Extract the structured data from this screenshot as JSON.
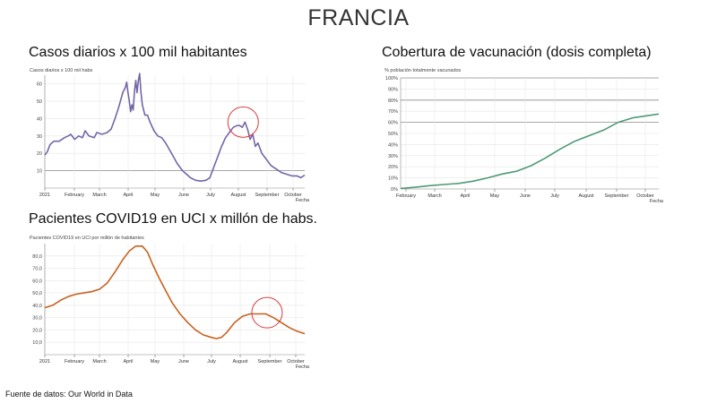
{
  "page": {
    "title": "FRANCIA",
    "source": "Fuente de datos: Our World in Data"
  },
  "colors": {
    "cases": "#7466a6",
    "vaccination": "#4e9a78",
    "icu": "#c8621e",
    "highlight": "#d93a3a",
    "grid": "#e6e6e6",
    "reference": "#8a8a8a"
  },
  "chart_data": [
    {
      "id": "cases",
      "type": "line",
      "title": "Casos diarios x 100 mil habitantes",
      "subtitle": "Casos diarios x 100 mil habs",
      "xlabel": "Fecha",
      "ylabel": "",
      "month_ticks": [
        "2021",
        "February",
        "March",
        "April",
        "May",
        "June",
        "July",
        "August",
        "September",
        "October"
      ],
      "x_range": [
        0,
        10
      ],
      "ylim": [
        0,
        65
      ],
      "y_ticks": [
        10,
        20,
        30,
        40,
        50,
        60
      ],
      "reference_lines": [
        10
      ],
      "highlight_circle": {
        "x": 7.63,
        "y": 38
      },
      "series": [
        {
          "points": [
            [
              0,
              19
            ],
            [
              0.1,
              21
            ],
            [
              0.2,
              25
            ],
            [
              0.35,
              27
            ],
            [
              0.55,
              27
            ],
            [
              0.75,
              29
            ],
            [
              0.9,
              30
            ],
            [
              1.0,
              31
            ],
            [
              1.15,
              28
            ],
            [
              1.3,
              30
            ],
            [
              1.45,
              29
            ],
            [
              1.55,
              33
            ],
            [
              1.7,
              30
            ],
            [
              1.9,
              29
            ],
            [
              2.0,
              32
            ],
            [
              2.2,
              31
            ],
            [
              2.4,
              32
            ],
            [
              2.55,
              34
            ],
            [
              2.7,
              40
            ],
            [
              2.85,
              47
            ],
            [
              3.0,
              55
            ],
            [
              3.1,
              58
            ],
            [
              3.15,
              61
            ],
            [
              3.2,
              55
            ],
            [
              3.25,
              50
            ],
            [
              3.3,
              44
            ],
            [
              3.35,
              48
            ],
            [
              3.4,
              45
            ],
            [
              3.45,
              56
            ],
            [
              3.5,
              62
            ],
            [
              3.55,
              55
            ],
            [
              3.6,
              62
            ],
            [
              3.65,
              66
            ],
            [
              3.7,
              55
            ],
            [
              3.75,
              48
            ],
            [
              3.85,
              42
            ],
            [
              3.95,
              42
            ],
            [
              4.05,
              38
            ],
            [
              4.2,
              33
            ],
            [
              4.35,
              30
            ],
            [
              4.5,
              29
            ],
            [
              4.65,
              26
            ],
            [
              4.8,
              22
            ],
            [
              4.95,
              18
            ],
            [
              5.1,
              14
            ],
            [
              5.3,
              10
            ],
            [
              5.45,
              8
            ],
            [
              5.6,
              6
            ],
            [
              5.8,
              4.5
            ],
            [
              6.0,
              4
            ],
            [
              6.2,
              4.5
            ],
            [
              6.35,
              6
            ],
            [
              6.5,
              12
            ],
            [
              6.65,
              18
            ],
            [
              6.8,
              24
            ],
            [
              6.95,
              29
            ],
            [
              7.1,
              32
            ],
            [
              7.25,
              35
            ],
            [
              7.4,
              36
            ],
            [
              7.5,
              36
            ],
            [
              7.6,
              35
            ],
            [
              7.7,
              38
            ],
            [
              7.8,
              34
            ],
            [
              7.9,
              28
            ],
            [
              8.0,
              31
            ],
            [
              8.1,
              24
            ],
            [
              8.2,
              26
            ],
            [
              8.35,
              20
            ],
            [
              8.5,
              17
            ],
            [
              8.7,
              13
            ],
            [
              8.9,
              11
            ],
            [
              9.1,
              9
            ],
            [
              9.3,
              8
            ],
            [
              9.5,
              7
            ],
            [
              9.7,
              7
            ],
            [
              9.85,
              6
            ],
            [
              10.0,
              7.5
            ]
          ]
        }
      ]
    },
    {
      "id": "vaccination",
      "type": "line",
      "title": "Cobertura de vacunación (dosis completa)",
      "subtitle": "% población totalmente vacunados",
      "xlabel": "Fecha",
      "ylabel": "",
      "month_ticks": [
        "February",
        "March",
        "April",
        "May",
        "June",
        "July",
        "August",
        "September",
        "October"
      ],
      "x_range": [
        0,
        8.9
      ],
      "ylim": [
        0,
        100
      ],
      "y_ticks": [
        "0%",
        "10%",
        "20%",
        "30%",
        "40%",
        "50%",
        "60%",
        "70%",
        "80%",
        "90%",
        "100%"
      ],
      "reference_lines": [
        60,
        80,
        100
      ],
      "series": [
        {
          "points": [
            [
              0,
              0.5
            ],
            [
              0.5,
              1.5
            ],
            [
              1,
              3
            ],
            [
              1.5,
              4
            ],
            [
              2,
              5
            ],
            [
              2.5,
              7
            ],
            [
              3,
              10
            ],
            [
              3.5,
              13.5
            ],
            [
              4,
              16
            ],
            [
              4.5,
              21
            ],
            [
              5,
              28
            ],
            [
              5.5,
              36
            ],
            [
              6,
              43
            ],
            [
              6.5,
              48
            ],
            [
              7,
              53
            ],
            [
              7.5,
              60
            ],
            [
              8,
              64
            ],
            [
              8.5,
              66
            ],
            [
              8.9,
              67.5
            ]
          ]
        }
      ]
    },
    {
      "id": "icu",
      "type": "line",
      "title": "Pacientes COVID19 en UCI x millón de habs.",
      "subtitle": "Pacientes COVID19 en UCI por millón de habitantes",
      "xlabel": "Fecha",
      "ylabel": "",
      "month_ticks": [
        "2021",
        "February",
        "March",
        "April",
        "May",
        "June",
        "July",
        "August",
        "September",
        "October"
      ],
      "x_range": [
        0,
        10
      ],
      "ylim": [
        0,
        90
      ],
      "y_ticks": [
        "10,0",
        "20,0",
        "30,0",
        "40,0",
        "50,0",
        "60,0",
        "70,0",
        "80,0"
      ],
      "reference_lines": [],
      "highlight_circle": {
        "x": 8.55,
        "y": 34
      },
      "series": [
        {
          "points": [
            [
              0,
              38
            ],
            [
              0.3,
              40
            ],
            [
              0.6,
              44
            ],
            [
              0.9,
              47
            ],
            [
              1.2,
              49
            ],
            [
              1.5,
              50
            ],
            [
              1.8,
              51
            ],
            [
              2.1,
              53
            ],
            [
              2.4,
              58
            ],
            [
              2.7,
              67
            ],
            [
              3.0,
              77
            ],
            [
              3.25,
              84
            ],
            [
              3.5,
              88
            ],
            [
              3.75,
              88
            ],
            [
              3.95,
              83
            ],
            [
              4.15,
              73
            ],
            [
              4.4,
              62
            ],
            [
              4.65,
              52
            ],
            [
              4.9,
              42
            ],
            [
              5.2,
              33
            ],
            [
              5.5,
              26
            ],
            [
              5.8,
              20
            ],
            [
              6.1,
              16
            ],
            [
              6.4,
              14
            ],
            [
              6.6,
              13
            ],
            [
              6.8,
              14
            ],
            [
              7.0,
              18
            ],
            [
              7.3,
              26
            ],
            [
              7.6,
              31
            ],
            [
              7.9,
              33
            ],
            [
              8.2,
              33
            ],
            [
              8.5,
              33
            ],
            [
              8.8,
              30
            ],
            [
              9.1,
              26
            ],
            [
              9.4,
              22
            ],
            [
              9.7,
              19
            ],
            [
              10.0,
              17
            ]
          ]
        }
      ]
    }
  ]
}
